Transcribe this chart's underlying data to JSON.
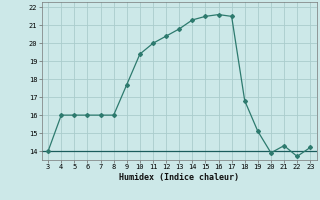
{
  "xlabel": "Humidex (Indice chaleur)",
  "x": [
    3,
    4,
    5,
    6,
    7,
    8,
    9,
    10,
    11,
    12,
    13,
    14,
    15,
    16,
    17,
    18,
    19,
    20,
    21,
    22,
    23
  ],
  "y": [
    14.0,
    16.0,
    16.0,
    16.0,
    16.0,
    16.0,
    17.7,
    19.4,
    20.0,
    20.4,
    20.8,
    21.3,
    21.5,
    21.6,
    21.5,
    16.8,
    15.1,
    13.9,
    14.3,
    13.7,
    14.2
  ],
  "line_color": "#2d7a6e",
  "bg_color": "#cce8e8",
  "grid_color": "#aacccc",
  "hline_y": 14.0,
  "hline_color": "#1a5c5c",
  "ylim": [
    13.5,
    22.3
  ],
  "xlim": [
    2.5,
    23.5
  ],
  "yticks": [
    14,
    15,
    16,
    17,
    18,
    19,
    20,
    21,
    22
  ],
  "xticks": [
    3,
    4,
    5,
    6,
    7,
    8,
    9,
    10,
    11,
    12,
    13,
    14,
    15,
    16,
    17,
    18,
    19,
    20,
    21,
    22,
    23
  ]
}
